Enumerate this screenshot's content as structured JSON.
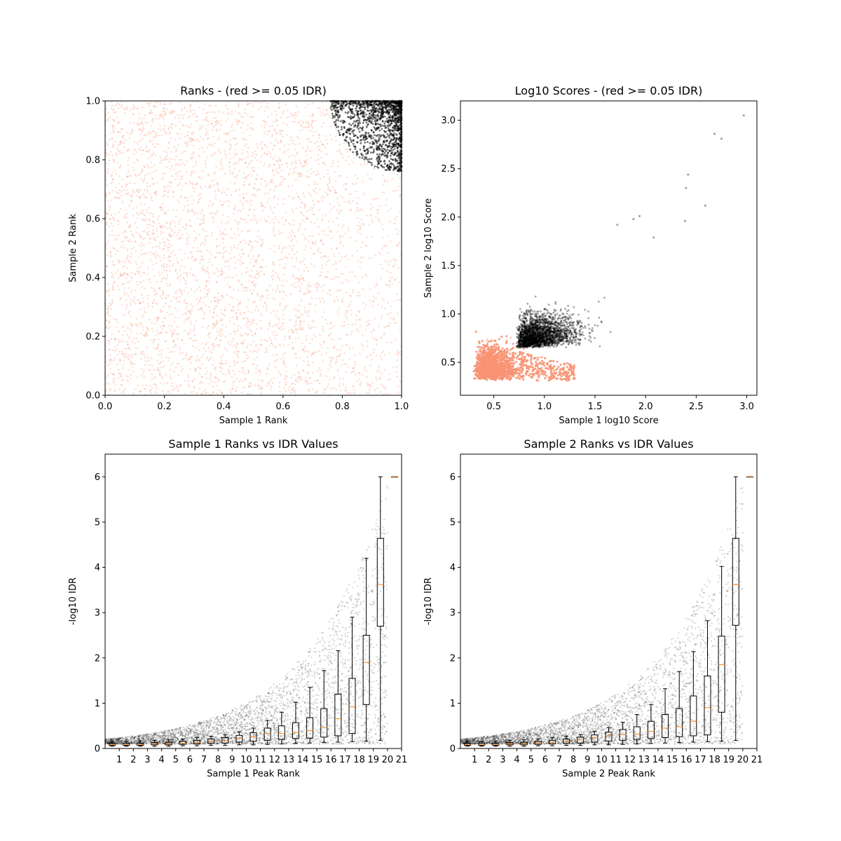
{
  "colors": {
    "pass": "#000000",
    "fail": "#fa9474",
    "median": "#ff7f0e"
  },
  "chart_data": [
    {
      "type": "scatter",
      "title": "Ranks - (red >= 0.05 IDR)",
      "xlabel": "Sample 1 Rank",
      "ylabel": "Sample 2 Rank",
      "xlim": [
        0,
        1
      ],
      "ylim": [
        0,
        1
      ],
      "xticks": [
        "0.0",
        "0.2",
        "0.4",
        "0.6",
        "0.8",
        "1.0"
      ],
      "yticks": [
        "0.0",
        "0.2",
        "0.4",
        "0.6",
        "0.8",
        "1.0"
      ],
      "series": [
        {
          "group": "fail",
          "region": "uniform over [0,1]x[0,1] excluding upper-right corner"
        },
        {
          "group": "pass",
          "region": "upper-right corner, x from 0.75 to 1.0, y from 0.76 to 1.0, boundary approx (x-1)^2+(y-1)^2 < 0.24^2"
        }
      ]
    },
    {
      "type": "scatter",
      "title": "Log10 Scores - (red >= 0.05 IDR)",
      "xlabel": "Sample 1 log10 Score",
      "ylabel": "Sample 2 log10 Score",
      "xlim": [
        0.17,
        3.1
      ],
      "ylim": [
        0.16,
        3.2
      ],
      "xticks": [
        "0.5",
        "1.0",
        "1.5",
        "2.0",
        "2.5",
        "3.0"
      ],
      "yticks": [
        "0.5",
        "1.0",
        "1.5",
        "2.0",
        "2.5",
        "3.0"
      ],
      "series": [
        {
          "group": "fail",
          "region": "dense cloud x 0.3-0.75, y 0.3-0.75, tail to x 1.3 near y 0.3-0.6"
        },
        {
          "group": "pass",
          "region": "x 0.7-1.5 and y 0.65-1.2, sparse tail to x 2.0 and y 2.0"
        }
      ],
      "outliers": [
        {
          "x": 2.97,
          "y": 3.05
        },
        {
          "x": 2.68,
          "y": 2.86
        },
        {
          "x": 2.75,
          "y": 2.81
        },
        {
          "x": 2.42,
          "y": 2.44
        },
        {
          "x": 2.4,
          "y": 2.3
        },
        {
          "x": 2.59,
          "y": 2.12
        },
        {
          "x": 2.39,
          "y": 1.96
        },
        {
          "x": 1.94,
          "y": 2.01
        },
        {
          "x": 2.08,
          "y": 1.79
        },
        {
          "x": 1.88,
          "y": 1.98
        },
        {
          "x": 1.72,
          "y": 1.92
        }
      ]
    },
    {
      "type": "box",
      "title": "Sample 1 Ranks vs IDR Values",
      "xlabel": "Sample 1 Peak Rank",
      "ylabel": "-log10 IDR",
      "xlim": [
        0,
        21
      ],
      "ylim": [
        0,
        6.5
      ],
      "xticks": [
        "1",
        "2",
        "3",
        "4",
        "5",
        "6",
        "7",
        "8",
        "9",
        "10",
        "11",
        "12",
        "13",
        "14",
        "15",
        "16",
        "17",
        "18",
        "19",
        "20",
        "21"
      ],
      "yticks": [
        "0",
        "1",
        "2",
        "3",
        "4",
        "5",
        "6"
      ],
      "boxes": [
        {
          "pos": 0.5,
          "q1": 0.07,
          "median": 0.09,
          "q3": 0.12,
          "whislo": 0.05,
          "whishi": 0.16
        },
        {
          "pos": 1.5,
          "q1": 0.07,
          "median": 0.09,
          "q3": 0.12,
          "whislo": 0.05,
          "whishi": 0.16
        },
        {
          "pos": 2.5,
          "q1": 0.07,
          "median": 0.09,
          "q3": 0.12,
          "whislo": 0.05,
          "whishi": 0.17
        },
        {
          "pos": 3.5,
          "q1": 0.08,
          "median": 0.1,
          "q3": 0.13,
          "whislo": 0.05,
          "whishi": 0.18
        },
        {
          "pos": 4.5,
          "q1": 0.08,
          "median": 0.1,
          "q3": 0.14,
          "whislo": 0.05,
          "whishi": 0.19
        },
        {
          "pos": 5.5,
          "q1": 0.09,
          "median": 0.12,
          "q3": 0.16,
          "whislo": 0.06,
          "whishi": 0.21
        },
        {
          "pos": 6.5,
          "q1": 0.1,
          "median": 0.13,
          "q3": 0.18,
          "whislo": 0.06,
          "whishi": 0.24
        },
        {
          "pos": 7.5,
          "q1": 0.11,
          "median": 0.16,
          "q3": 0.21,
          "whislo": 0.07,
          "whishi": 0.27
        },
        {
          "pos": 8.5,
          "q1": 0.12,
          "median": 0.18,
          "q3": 0.24,
          "whislo": 0.07,
          "whishi": 0.31
        },
        {
          "pos": 9.5,
          "q1": 0.14,
          "median": 0.22,
          "q3": 0.29,
          "whislo": 0.08,
          "whishi": 0.37
        },
        {
          "pos": 10.5,
          "q1": 0.16,
          "median": 0.26,
          "q3": 0.35,
          "whislo": 0.08,
          "whishi": 0.45
        },
        {
          "pos": 11.5,
          "q1": 0.18,
          "median": 0.33,
          "q3": 0.45,
          "whislo": 0.09,
          "whishi": 0.62
        },
        {
          "pos": 12.5,
          "q1": 0.2,
          "median": 0.33,
          "q3": 0.5,
          "whislo": 0.1,
          "whishi": 0.8
        },
        {
          "pos": 13.5,
          "q1": 0.22,
          "median": 0.35,
          "q3": 0.57,
          "whislo": 0.11,
          "whishi": 1.02
        },
        {
          "pos": 14.5,
          "q1": 0.23,
          "median": 0.39,
          "q3": 0.68,
          "whislo": 0.12,
          "whishi": 1.35
        },
        {
          "pos": 15.5,
          "q1": 0.25,
          "median": 0.46,
          "q3": 0.88,
          "whislo": 0.13,
          "whishi": 1.72
        },
        {
          "pos": 16.5,
          "q1": 0.28,
          "median": 0.66,
          "q3": 1.2,
          "whislo": 0.14,
          "whishi": 2.16
        },
        {
          "pos": 17.5,
          "q1": 0.33,
          "median": 0.92,
          "q3": 1.55,
          "whislo": 0.15,
          "whishi": 2.9
        },
        {
          "pos": 18.5,
          "q1": 0.97,
          "median": 1.9,
          "q3": 2.5,
          "whislo": 0.16,
          "whishi": 4.2
        },
        {
          "pos": 19.5,
          "q1": 2.7,
          "median": 3.62,
          "q3": 4.64,
          "whislo": 0.18,
          "whishi": 6.0
        },
        {
          "pos": 20.5,
          "q1": 6.0,
          "median": 6.0,
          "q3": 6.0,
          "whislo": 6.0,
          "whishi": 6.0
        }
      ]
    },
    {
      "type": "box",
      "title": "Sample 2 Ranks vs IDR Values",
      "xlabel": "Sample 2 Peak Rank",
      "ylabel": "-log10 IDR",
      "xlim": [
        0,
        21
      ],
      "ylim": [
        0,
        6.5
      ],
      "xticks": [
        "1",
        "2",
        "3",
        "4",
        "5",
        "6",
        "7",
        "8",
        "9",
        "10",
        "11",
        "12",
        "13",
        "14",
        "15",
        "16",
        "17",
        "18",
        "19",
        "20",
        "21"
      ],
      "yticks": [
        "0",
        "1",
        "2",
        "3",
        "4",
        "5",
        "6"
      ],
      "boxes": [
        {
          "pos": 0.5,
          "q1": 0.07,
          "median": 0.09,
          "q3": 0.12,
          "whislo": 0.05,
          "whishi": 0.16
        },
        {
          "pos": 1.5,
          "q1": 0.07,
          "median": 0.09,
          "q3": 0.12,
          "whislo": 0.05,
          "whishi": 0.16
        },
        {
          "pos": 2.5,
          "q1": 0.07,
          "median": 0.09,
          "q3": 0.12,
          "whislo": 0.05,
          "whishi": 0.17
        },
        {
          "pos": 3.5,
          "q1": 0.08,
          "median": 0.1,
          "q3": 0.13,
          "whislo": 0.05,
          "whishi": 0.18
        },
        {
          "pos": 4.5,
          "q1": 0.08,
          "median": 0.1,
          "q3": 0.14,
          "whislo": 0.05,
          "whishi": 0.19
        },
        {
          "pos": 5.5,
          "q1": 0.09,
          "median": 0.12,
          "q3": 0.16,
          "whislo": 0.06,
          "whishi": 0.21
        },
        {
          "pos": 6.5,
          "q1": 0.1,
          "median": 0.13,
          "q3": 0.18,
          "whislo": 0.06,
          "whishi": 0.24
        },
        {
          "pos": 7.5,
          "q1": 0.11,
          "median": 0.16,
          "q3": 0.21,
          "whislo": 0.07,
          "whishi": 0.27
        },
        {
          "pos": 8.5,
          "q1": 0.12,
          "median": 0.2,
          "q3": 0.25,
          "whislo": 0.07,
          "whishi": 0.31
        },
        {
          "pos": 9.5,
          "q1": 0.14,
          "median": 0.24,
          "q3": 0.3,
          "whislo": 0.08,
          "whishi": 0.38
        },
        {
          "pos": 10.5,
          "q1": 0.16,
          "median": 0.28,
          "q3": 0.36,
          "whislo": 0.08,
          "whishi": 0.46
        },
        {
          "pos": 11.5,
          "q1": 0.18,
          "median": 0.31,
          "q3": 0.42,
          "whislo": 0.09,
          "whishi": 0.58
        },
        {
          "pos": 12.5,
          "q1": 0.2,
          "median": 0.32,
          "q3": 0.48,
          "whislo": 0.1,
          "whishi": 0.75
        },
        {
          "pos": 13.5,
          "q1": 0.22,
          "median": 0.38,
          "q3": 0.6,
          "whislo": 0.11,
          "whishi": 0.97
        },
        {
          "pos": 14.5,
          "q1": 0.24,
          "median": 0.45,
          "q3": 0.75,
          "whislo": 0.12,
          "whishi": 1.32
        },
        {
          "pos": 15.5,
          "q1": 0.26,
          "median": 0.48,
          "q3": 0.88,
          "whislo": 0.13,
          "whishi": 1.7
        },
        {
          "pos": 16.5,
          "q1": 0.28,
          "median": 0.6,
          "q3": 1.16,
          "whislo": 0.14,
          "whishi": 2.14
        },
        {
          "pos": 17.5,
          "q1": 0.3,
          "median": 0.9,
          "q3": 1.6,
          "whislo": 0.15,
          "whishi": 2.82
        },
        {
          "pos": 18.5,
          "q1": 0.8,
          "median": 1.85,
          "q3": 2.48,
          "whislo": 0.16,
          "whishi": 4.02
        },
        {
          "pos": 19.5,
          "q1": 2.72,
          "median": 3.62,
          "q3": 4.64,
          "whislo": 0.18,
          "whishi": 6.0
        },
        {
          "pos": 20.5,
          "q1": 6.0,
          "median": 6.0,
          "q3": 6.0,
          "whislo": 6.0,
          "whishi": 6.0
        }
      ]
    }
  ]
}
